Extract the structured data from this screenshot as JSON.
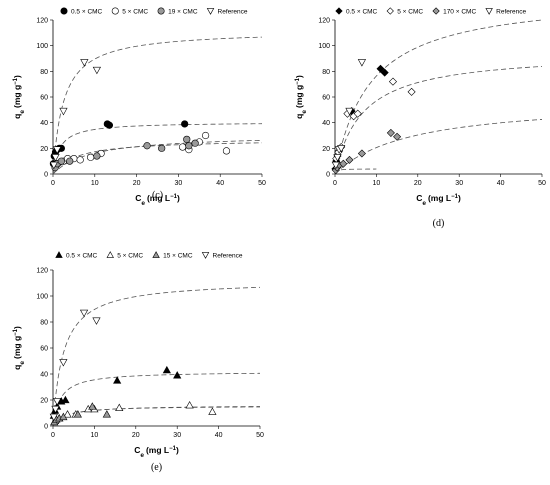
{
  "figure_title": "",
  "chart_data": [
    {
      "panel": "(c)",
      "type": "scatter",
      "title": "",
      "xlabel": "Ce (mg L−1)",
      "ylabel": "qe (mg g−1)",
      "xlim": [
        0,
        50
      ],
      "ylim": [
        0,
        120
      ],
      "xticks": [
        0,
        10,
        20,
        30,
        40,
        50
      ],
      "yticks": [
        0,
        20,
        40,
        60,
        80,
        100,
        120
      ],
      "grid": false,
      "legend_position": "top",
      "series": [
        {
          "name": "0.5 × CMC",
          "marker": "circle",
          "fill": "#000000",
          "x": [
            0.1,
            0.3,
            0.6,
            1.0,
            1.5,
            2.0,
            13.0,
            13.5,
            31.5
          ],
          "y": [
            8,
            14,
            17,
            19,
            20,
            20,
            39,
            38,
            39
          ],
          "fit": {
            "qmax": 40.5,
            "K": 0.6
          }
        },
        {
          "name": "5 × CMC",
          "marker": "circle",
          "fill": "#ffffff",
          "x": [
            1.0,
            2.5,
            3.5,
            5.0,
            6.5,
            9.0,
            11.5,
            31.0,
            32.5,
            35.0,
            36.5,
            41.5
          ],
          "y": [
            8,
            10,
            12,
            12,
            11,
            13,
            16,
            21,
            19,
            25,
            30,
            18
          ],
          "fit": {
            "qmax": 27,
            "K": 0.18
          }
        },
        {
          "name": "19 × CMC",
          "marker": "circle",
          "fill": "#999999",
          "x": [
            0.5,
            1.0,
            2.0,
            4.0,
            10.5,
            22.5,
            26.0,
            32.0,
            32.5,
            34.0
          ],
          "y": [
            5,
            8,
            10,
            10,
            14,
            22,
            20,
            27,
            22,
            24
          ],
          "fit": {
            "qmax": 31,
            "K": 0.11
          }
        },
        {
          "name": "Reference",
          "marker": "triangle-down",
          "fill": "#ffffff",
          "x": [
            0.2,
            0.6,
            1.0,
            2.5,
            7.5,
            10.5
          ],
          "y": [
            7,
            13,
            19,
            49,
            87,
            81
          ],
          "fit": {
            "qmax": 112,
            "K": 0.4
          }
        }
      ]
    },
    {
      "panel": "(d)",
      "type": "scatter",
      "title": "",
      "xlabel": "Ce (mg L−1)",
      "ylabel": "qe (mg g−1)",
      "xlim": [
        0,
        50
      ],
      "ylim": [
        0,
        120
      ],
      "xticks": [
        0,
        10,
        20,
        30,
        40,
        50
      ],
      "yticks": [
        0,
        20,
        40,
        60,
        80,
        100,
        120
      ],
      "grid": false,
      "legend_position": "top",
      "series": [
        {
          "name": "0.5 × CMC",
          "marker": "diamond",
          "fill": "#000000",
          "x": [
            0.1,
            0.3,
            0.6,
            1.0,
            4.0,
            11.0,
            12.0
          ],
          "y": [
            4,
            10,
            14,
            18,
            49,
            82,
            79
          ],
          "fit": {
            "qmax": 4,
            "K": 3.0,
            "xmax": 10
          }
        },
        {
          "name": "5 × CMC",
          "marker": "diamond",
          "fill": "#ffffff",
          "x": [
            0.3,
            0.8,
            1.5,
            3.0,
            4.5,
            5.5,
            14.0,
            18.5
          ],
          "y": [
            12,
            17,
            21,
            47,
            45,
            47,
            72,
            64
          ],
          "fit": {
            "qmax": 95,
            "K": 0.15
          }
        },
        {
          "name": "170 × CMC",
          "marker": "diamond",
          "fill": "#999999",
          "x": [
            0.2,
            0.5,
            1.0,
            2.0,
            3.5,
            6.5,
            13.5,
            15.0
          ],
          "y": [
            3,
            5,
            7,
            8,
            11,
            16,
            32,
            29
          ],
          "fit": {
            "qmax": 58,
            "K": 0.055
          }
        },
        {
          "name": "Reference",
          "marker": "triangle-down",
          "fill": "#ffffff",
          "x": [
            0.2,
            0.6,
            1.0,
            1.5,
            3.5,
            6.5
          ],
          "y": [
            7,
            13,
            19,
            20,
            49,
            87
          ],
          "fit": {
            "qmax": 140,
            "K": 0.12
          }
        }
      ]
    },
    {
      "panel": "(e)",
      "type": "scatter",
      "title": "",
      "xlabel": "Ce (mg L−1)",
      "ylabel": "qe (mg g−1)",
      "xlim": [
        0,
        50
      ],
      "ylim": [
        0,
        120
      ],
      "xticks": [
        0,
        10,
        20,
        30,
        40,
        50
      ],
      "yticks": [
        0,
        20,
        40,
        60,
        80,
        100,
        120
      ],
      "grid": false,
      "legend_position": "top",
      "series": [
        {
          "name": "0.5 × CMC",
          "marker": "triangle-up",
          "fill": "#000000",
          "x": [
            0.2,
            0.5,
            1.0,
            2.0,
            3.0,
            15.5,
            27.5,
            30.0
          ],
          "y": [
            8,
            12,
            15,
            19,
            20,
            35,
            43,
            39
          ],
          "fit": {
            "qmax": 42,
            "K": 0.55
          }
        },
        {
          "name": "5 × CMC",
          "marker": "triangle-up",
          "fill": "#ffffff",
          "x": [
            0.5,
            1.5,
            3.5,
            5.5,
            8.5,
            10.0,
            16.0,
            33.0,
            38.5
          ],
          "y": [
            4,
            6,
            9,
            9,
            13,
            13,
            14,
            16,
            11
          ],
          "fit": {
            "qmax": 16,
            "K": 0.3
          }
        },
        {
          "name": "15 × CMC",
          "marker": "triangle-up",
          "fill": "#999999",
          "x": [
            0.3,
            0.8,
            1.5,
            2.5,
            6.0,
            9.5,
            13.0
          ],
          "y": [
            3,
            5,
            6,
            7,
            9,
            15,
            9
          ],
          "fit": {
            "qmax": 15.5,
            "K": 0.35
          }
        },
        {
          "name": "Reference",
          "marker": "triangle-down",
          "fill": "#ffffff",
          "x": [
            0.2,
            0.6,
            1.0,
            2.5,
            7.5,
            10.5
          ],
          "y": [
            7,
            13,
            19,
            49,
            87,
            81
          ],
          "fit": {
            "qmax": 112,
            "K": 0.4
          }
        }
      ]
    }
  ]
}
